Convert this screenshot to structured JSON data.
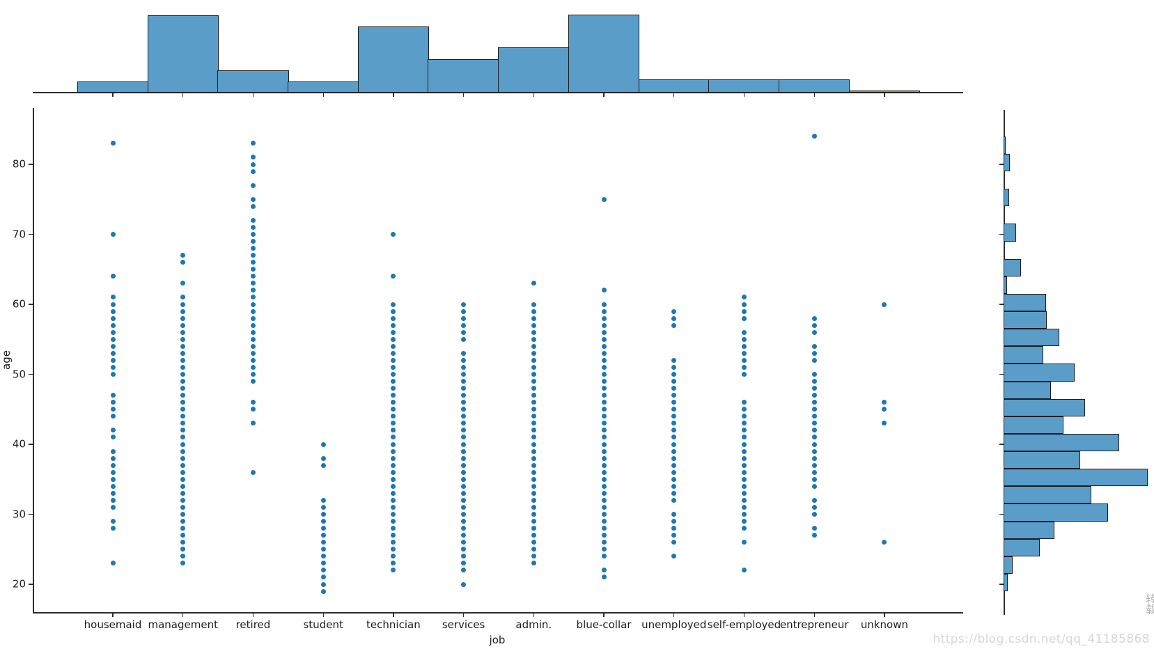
{
  "figure": {
    "xlabel": "job",
    "ylabel": "age",
    "watermark": "https://blog.csdn.net/qq_41185868",
    "watermark_vertical": "转载",
    "colors": {
      "dot": "#1f77b4",
      "bar_fill": "#5b9dc9",
      "bar_edge": "#1c1c1c",
      "spine": "#2e2e2e",
      "watermark": "#d7d7d7"
    }
  },
  "chart_data": {
    "type": "scatter",
    "subtype": "jointplot-with-marginal-histograms",
    "title": "",
    "xlabel": "job",
    "ylabel": "age",
    "x_categories": [
      "housemaid",
      "management",
      "retired",
      "student",
      "technician",
      "services",
      "admin.",
      "blue-collar",
      "unemployed",
      "self-employed",
      "entrepreneur",
      "unknown"
    ],
    "y_ticks": [
      20,
      30,
      40,
      50,
      60,
      70,
      80
    ],
    "ylim": [
      16,
      88
    ],
    "grid": false,
    "legend": "none",
    "points": [
      {
        "job": "housemaid",
        "ages": [
          83,
          70,
          64,
          61,
          60,
          59,
          58,
          57,
          56,
          55,
          54,
          53,
          52,
          51,
          50,
          47,
          46,
          45,
          44,
          42,
          41,
          39,
          38,
          37,
          36,
          35,
          34,
          33,
          32,
          31,
          29,
          28,
          23
        ]
      },
      {
        "job": "management",
        "ages": [
          67,
          66,
          63,
          61,
          60,
          59,
          58,
          57,
          56,
          55,
          54,
          53,
          52,
          51,
          50,
          49,
          48,
          47,
          46,
          45,
          44,
          43,
          42,
          41,
          40,
          39,
          38,
          37,
          36,
          35,
          34,
          33,
          32,
          31,
          30,
          29,
          28,
          27,
          26,
          25,
          24,
          23
        ]
      },
      {
        "job": "retired",
        "ages": [
          83,
          81,
          80,
          79,
          77,
          75,
          74,
          72,
          71,
          70,
          69,
          68,
          67,
          66,
          65,
          64,
          63,
          62,
          61,
          60,
          59,
          58,
          57,
          56,
          55,
          54,
          53,
          52,
          51,
          50,
          49,
          46,
          45,
          43,
          36
        ]
      },
      {
        "job": "student",
        "ages": [
          40,
          38,
          37,
          32,
          31,
          30,
          29,
          28,
          27,
          26,
          25,
          24,
          23,
          22,
          21,
          20,
          19
        ]
      },
      {
        "job": "technician",
        "ages": [
          70,
          64,
          60,
          59,
          58,
          57,
          56,
          55,
          54,
          53,
          52,
          51,
          50,
          49,
          48,
          47,
          46,
          45,
          44,
          43,
          42,
          41,
          40,
          39,
          38,
          37,
          36,
          35,
          34,
          33,
          32,
          31,
          30,
          29,
          28,
          27,
          26,
          25,
          24,
          23,
          22
        ]
      },
      {
        "job": "services",
        "ages": [
          60,
          59,
          58,
          57,
          56,
          55,
          53,
          52,
          51,
          50,
          49,
          48,
          47,
          46,
          45,
          44,
          43,
          42,
          41,
          40,
          39,
          38,
          37,
          36,
          35,
          34,
          33,
          32,
          31,
          30,
          29,
          28,
          27,
          26,
          25,
          24,
          23,
          22,
          20
        ]
      },
      {
        "job": "admin.",
        "ages": [
          63,
          60,
          59,
          58,
          57,
          56,
          55,
          54,
          53,
          52,
          51,
          50,
          49,
          48,
          47,
          46,
          45,
          44,
          43,
          42,
          41,
          40,
          39,
          38,
          37,
          36,
          35,
          34,
          33,
          32,
          31,
          30,
          29,
          28,
          27,
          26,
          25,
          24,
          23
        ]
      },
      {
        "job": "blue-collar",
        "ages": [
          75,
          62,
          60,
          59,
          58,
          57,
          56,
          55,
          54,
          53,
          52,
          51,
          50,
          49,
          48,
          47,
          46,
          45,
          44,
          43,
          42,
          41,
          40,
          39,
          38,
          37,
          36,
          35,
          34,
          33,
          32,
          31,
          30,
          29,
          28,
          27,
          26,
          25,
          24,
          22,
          21
        ]
      },
      {
        "job": "unemployed",
        "ages": [
          59,
          58,
          57,
          52,
          51,
          50,
          49,
          48,
          47,
          46,
          45,
          44,
          43,
          42,
          41,
          40,
          39,
          38,
          37,
          36,
          35,
          34,
          33,
          32,
          30,
          29,
          28,
          27,
          26,
          24
        ]
      },
      {
        "job": "self-employed",
        "ages": [
          61,
          60,
          59,
          58,
          56,
          55,
          54,
          53,
          52,
          51,
          50,
          46,
          45,
          44,
          43,
          42,
          41,
          40,
          39,
          38,
          37,
          36,
          35,
          34,
          33,
          32,
          31,
          30,
          29,
          28,
          26,
          22
        ]
      },
      {
        "job": "entrepreneur",
        "ages": [
          84,
          58,
          57,
          56,
          54,
          53,
          52,
          50,
          49,
          48,
          47,
          46,
          45,
          44,
          43,
          42,
          41,
          40,
          39,
          38,
          37,
          36,
          35,
          34,
          32,
          31,
          30,
          28,
          27
        ]
      },
      {
        "job": "unknown",
        "ages": [
          60,
          46,
          45,
          43,
          26
        ]
      }
    ],
    "top_histogram": {
      "type": "bar",
      "orientation": "vertical",
      "description": "marginal count of records per job, one bar per category",
      "categories": [
        "housemaid",
        "management",
        "retired",
        "student",
        "technician",
        "services",
        "admin.",
        "blue-collar",
        "unemployed",
        "self-employed",
        "entrepreneur",
        "unknown"
      ],
      "relative_heights": [
        0.143,
        0.991,
        0.286,
        0.143,
        0.848,
        0.429,
        0.58,
        1.0,
        0.17,
        0.17,
        0.17,
        0.027
      ]
    },
    "right_histogram": {
      "type": "bar",
      "orientation": "horizontal",
      "description": "marginal distribution of age, 2.5-year bins, widths relative to longest bar",
      "bins": [
        {
          "age_min": 81.5,
          "age_max": 84.0,
          "rel": 0.01
        },
        {
          "age_min": 79.0,
          "age_max": 81.5,
          "rel": 0.043
        },
        {
          "age_min": 76.5,
          "age_max": 79.0,
          "rel": 0.0
        },
        {
          "age_min": 74.0,
          "age_max": 76.5,
          "rel": 0.039
        },
        {
          "age_min": 71.5,
          "age_max": 74.0,
          "rel": 0.0
        },
        {
          "age_min": 69.0,
          "age_max": 71.5,
          "rel": 0.087
        },
        {
          "age_min": 66.5,
          "age_max": 69.0,
          "rel": 0.0
        },
        {
          "age_min": 64.0,
          "age_max": 66.5,
          "rel": 0.121
        },
        {
          "age_min": 61.5,
          "age_max": 64.0,
          "rel": 0.024
        },
        {
          "age_min": 59.0,
          "age_max": 61.5,
          "rel": 0.295
        },
        {
          "age_min": 56.5,
          "age_max": 59.0,
          "rel": 0.3
        },
        {
          "age_min": 54.0,
          "age_max": 56.5,
          "rel": 0.386
        },
        {
          "age_min": 51.5,
          "age_max": 54.0,
          "rel": 0.275
        },
        {
          "age_min": 49.0,
          "age_max": 51.5,
          "rel": 0.493
        },
        {
          "age_min": 46.5,
          "age_max": 49.0,
          "rel": 0.329
        },
        {
          "age_min": 44.0,
          "age_max": 46.5,
          "rel": 0.565
        },
        {
          "age_min": 41.5,
          "age_max": 44.0,
          "rel": 0.415
        },
        {
          "age_min": 39.0,
          "age_max": 41.5,
          "rel": 0.802
        },
        {
          "age_min": 36.5,
          "age_max": 39.0,
          "rel": 0.531
        },
        {
          "age_min": 34.0,
          "age_max": 36.5,
          "rel": 1.0
        },
        {
          "age_min": 31.5,
          "age_max": 34.0,
          "rel": 0.609
        },
        {
          "age_min": 29.0,
          "age_max": 31.5,
          "rel": 0.725
        },
        {
          "age_min": 26.5,
          "age_max": 29.0,
          "rel": 0.353
        },
        {
          "age_min": 24.0,
          "age_max": 26.5,
          "rel": 0.251
        },
        {
          "age_min": 21.5,
          "age_max": 24.0,
          "rel": 0.063
        },
        {
          "age_min": 19.0,
          "age_max": 21.5,
          "rel": 0.029
        }
      ]
    }
  }
}
